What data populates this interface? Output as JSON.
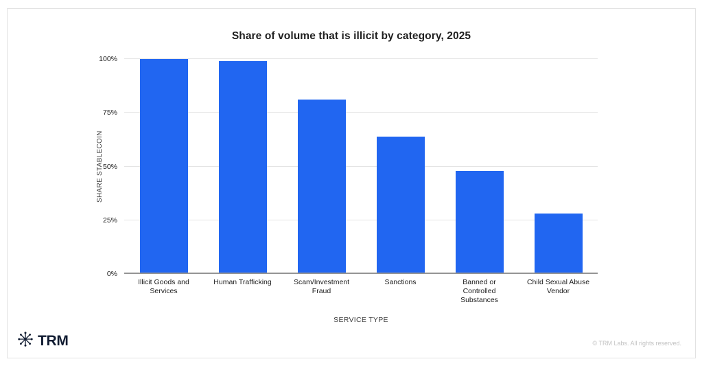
{
  "chart_data": {
    "type": "bar",
    "title": "Share of volume that is illicit by category, 2025",
    "xlabel": "SERVICE TYPE",
    "ylabel": "SHARE STABLECOIN",
    "categories": [
      "Illicit Goods and Services",
      "Human Trafficking",
      "Scam/Investment Fraud",
      "Sanctions",
      "Banned or Controlled Substances",
      "Child Sexual Abuse Vendor"
    ],
    "values": [
      100,
      99,
      81,
      64,
      48,
      28
    ],
    "value_unit": "%",
    "ylim": [
      0,
      100
    ],
    "ytick_values": [
      0,
      25,
      50,
      75,
      100
    ],
    "ytick_labels": [
      "0%",
      "25%",
      "50%",
      "75%",
      "100%"
    ],
    "grid": true,
    "legend": false,
    "bar_color": "#2166F1"
  },
  "footer": {
    "logo_text": "TRM",
    "copyright": "© TRM Labs. All rights reserved."
  },
  "colors": {
    "bar": "#2166F1",
    "gridline": "#e4e4e4",
    "axis_line": "#949494",
    "logo_navy": "#101b31",
    "background": "#ffffff"
  }
}
